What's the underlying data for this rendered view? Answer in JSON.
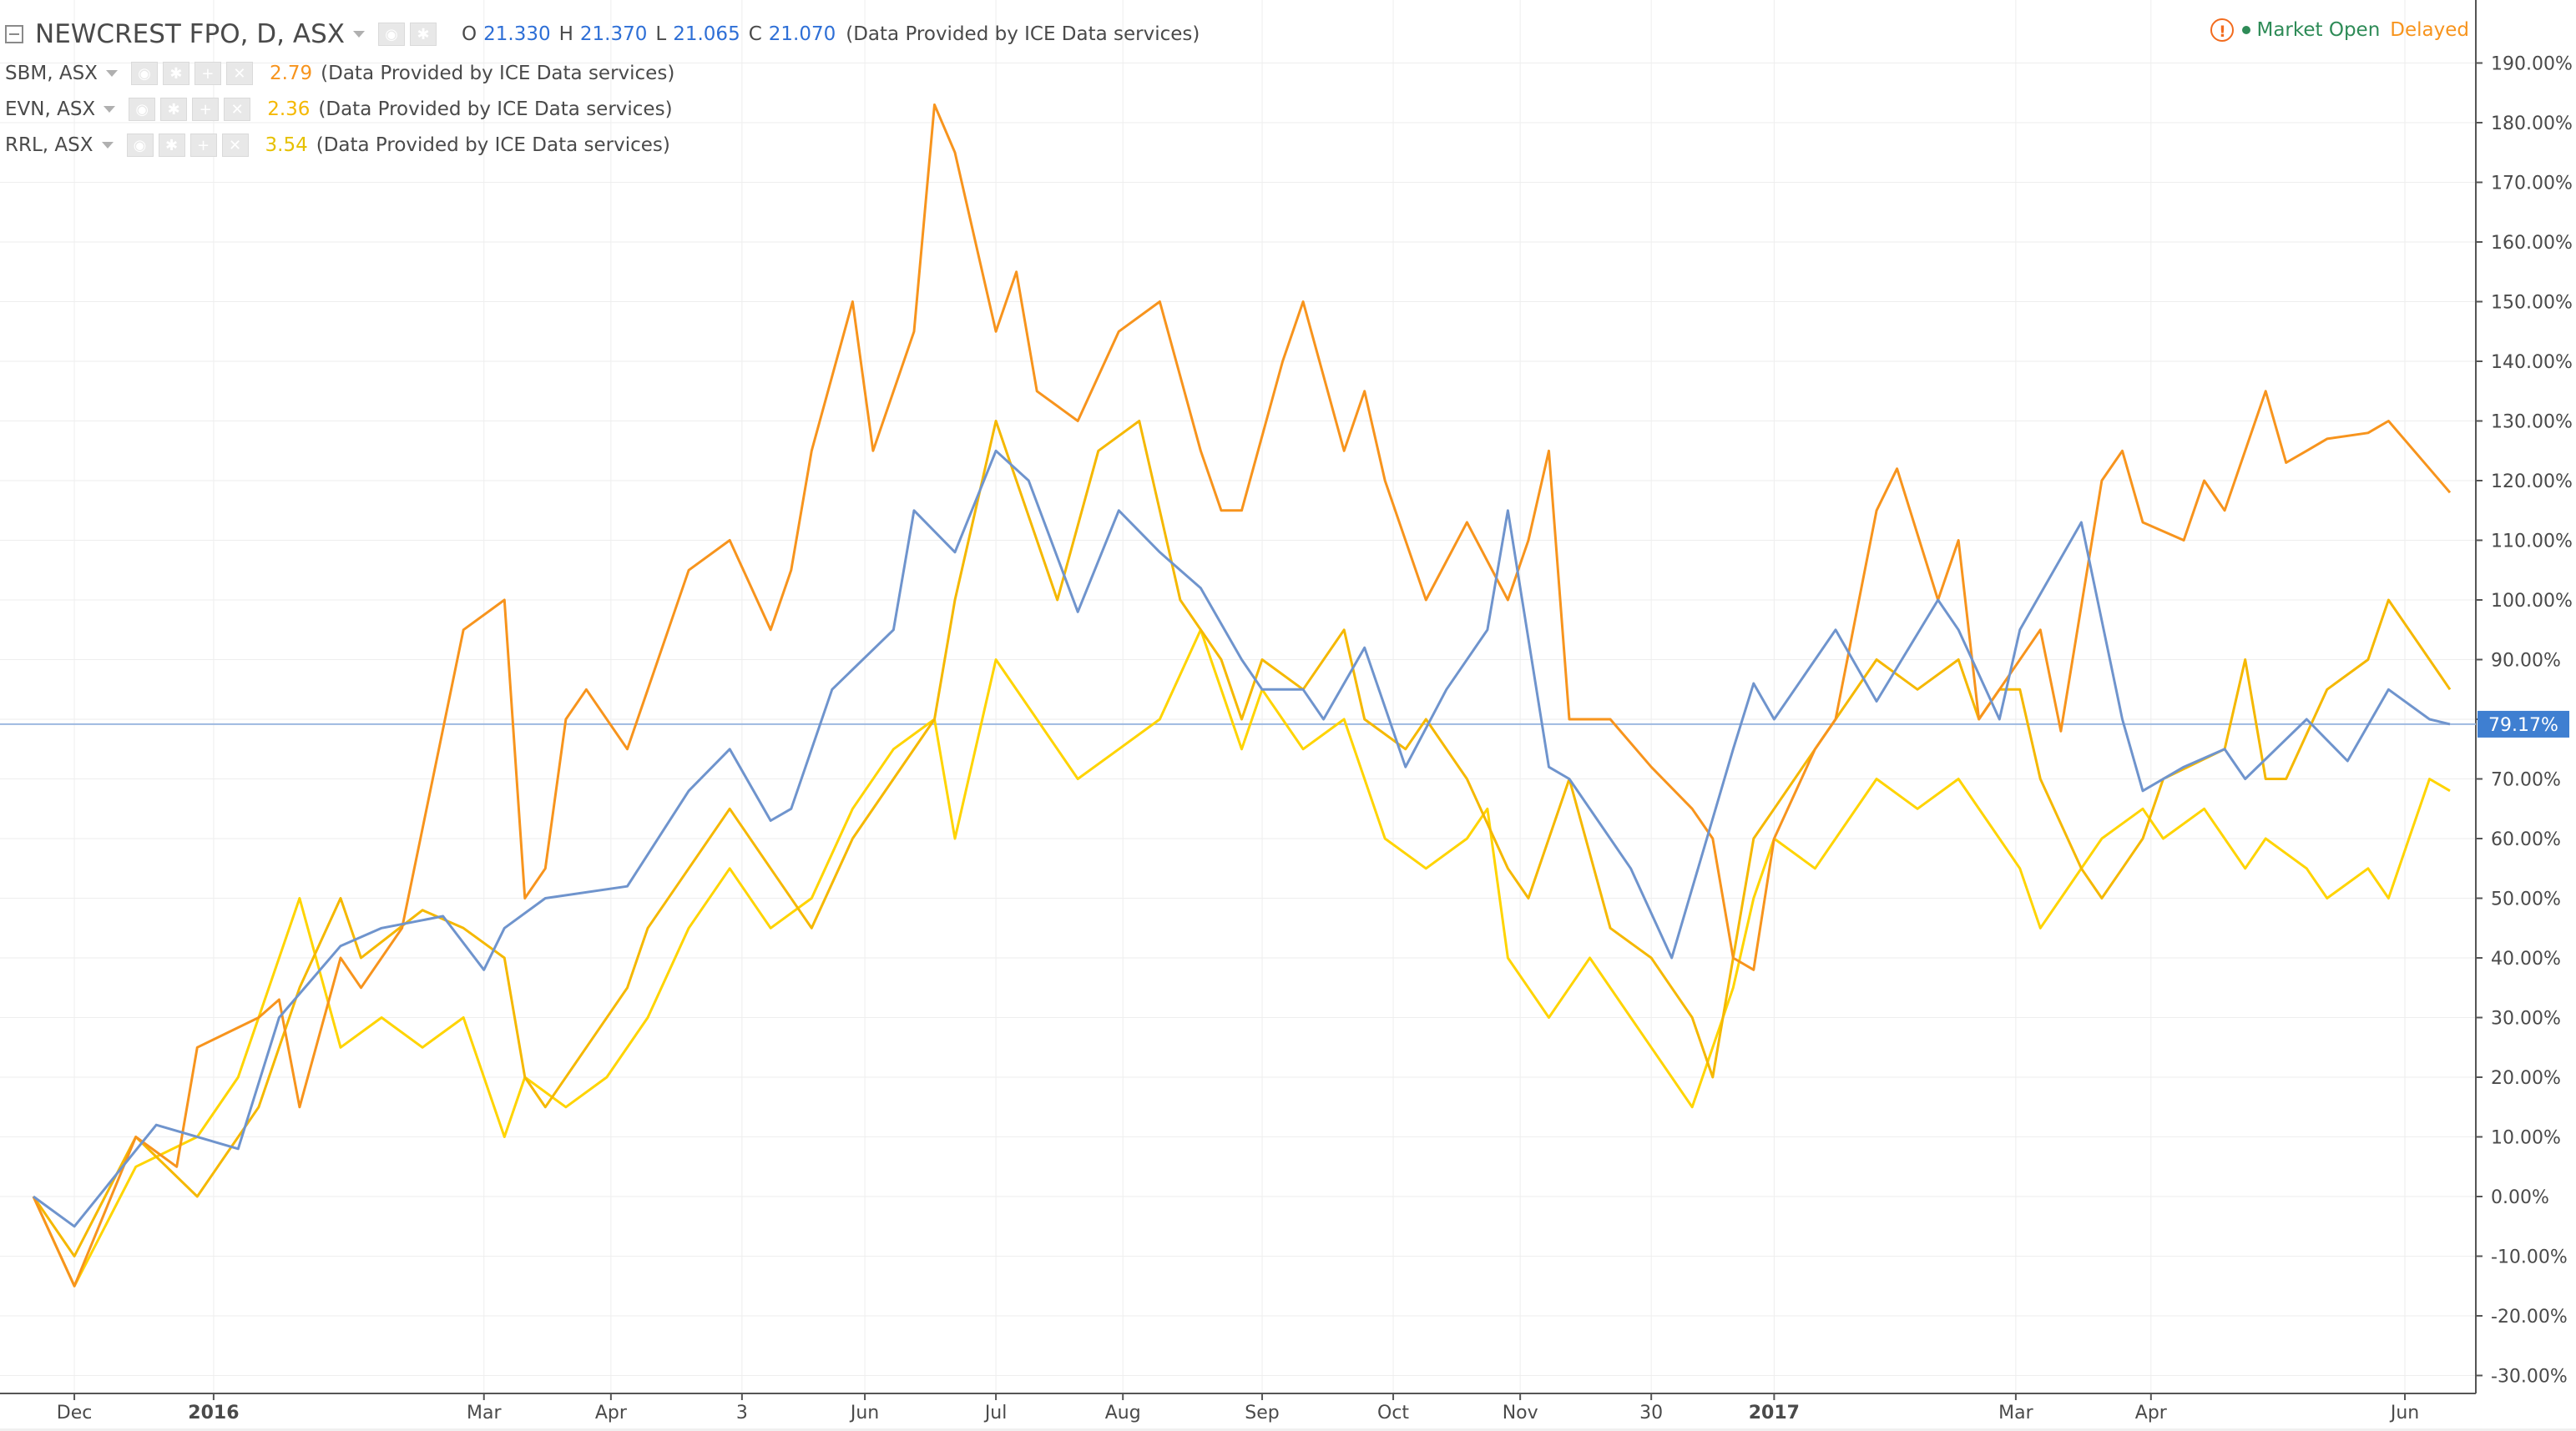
{
  "header": {
    "title": "NEWCREST FPO, D, ASX",
    "ohlc": [
      {
        "key": "O",
        "value": "21.330"
      },
      {
        "key": "H",
        "value": "21.370"
      },
      {
        "key": "L",
        "value": "21.065"
      },
      {
        "key": "C",
        "value": "21.070"
      }
    ],
    "provider": "(Data Provided by ICE Data services)"
  },
  "status": {
    "warning_icon": "!",
    "market_open": "Market Open",
    "delayed": "Delayed",
    "open_color": "#2e8b57",
    "delayed_color": "#f7941d"
  },
  "compare": [
    {
      "symbol": "SBM, ASX",
      "value": "2.79",
      "color": "#f7941d",
      "provider": "(Data Provided by ICE Data services)"
    },
    {
      "symbol": "EVN, ASX",
      "value": "2.36",
      "color": "#f5b800",
      "provider": "(Data Provided by ICE Data services)"
    },
    {
      "symbol": "RRL, ASX",
      "value": "3.54",
      "color": "#ffd400",
      "provider": "(Data Provided by ICE Data services)"
    }
  ],
  "icons": {
    "eye": "eye-icon",
    "settings": "gear-icon",
    "add": "plus-icon",
    "remove": "close-icon",
    "collapse": "collapse-icon",
    "dropdown": "caret-down-icon"
  },
  "chart_data": {
    "type": "line",
    "title": "NEWCREST FPO, D, ASX",
    "x_ticks": [
      "Dec",
      "2016",
      "Mar",
      "Apr",
      "3",
      "Jun",
      "Jul",
      "Aug",
      "Sep",
      "Oct",
      "Nov",
      "30",
      "2017",
      "Mar",
      "Apr",
      "Jun"
    ],
    "x_tick_days": [
      0,
      34,
      100,
      131,
      163,
      193,
      225,
      256,
      290,
      322,
      353,
      385,
      415,
      474,
      507,
      569
    ],
    "ylim": [
      -35,
      197
    ],
    "y_ticks": [
      -30,
      -20,
      -10,
      0,
      10,
      20,
      30,
      40,
      50,
      60,
      70,
      80,
      90,
      100,
      110,
      120,
      130,
      140,
      150,
      160,
      170,
      180,
      190
    ],
    "y_unit": "%",
    "current_value": 79.17,
    "current_label": "79.17%",
    "grid": true,
    "series": [
      {
        "name": "NEWCREST FPO, D, ASX",
        "color": "#6f94cd",
        "x": [
          -10,
          0,
          20,
          40,
          50,
          65,
          75,
          90,
          100,
          105,
          115,
          135,
          150,
          160,
          170,
          175,
          185,
          200,
          205,
          215,
          225,
          233,
          245,
          255,
          265,
          275,
          285,
          290,
          300,
          305,
          315,
          325,
          335,
          345,
          350,
          360,
          365,
          380,
          390,
          405,
          410,
          415,
          430,
          440,
          455,
          460,
          470,
          475,
          490,
          500,
          505,
          515,
          525,
          530,
          545,
          555,
          565,
          575,
          580
        ],
        "y": [
          0,
          -5,
          12,
          8,
          30,
          42,
          45,
          47,
          38,
          45,
          50,
          52,
          68,
          75,
          63,
          65,
          85,
          95,
          115,
          108,
          125,
          120,
          98,
          115,
          108,
          102,
          90,
          85,
          85,
          80,
          92,
          72,
          85,
          95,
          115,
          72,
          70,
          55,
          40,
          75,
          86,
          80,
          95,
          83,
          100,
          95,
          80,
          95,
          113,
          80,
          68,
          72,
          75,
          70,
          80,
          73,
          85,
          80,
          79.17
        ]
      },
      {
        "name": "SBM, ASX",
        "color": "#f7941d",
        "x": [
          -10,
          0,
          15,
          25,
          30,
          45,
          50,
          55,
          65,
          70,
          80,
          95,
          105,
          110,
          115,
          120,
          125,
          135,
          145,
          150,
          160,
          170,
          175,
          180,
          190,
          195,
          205,
          210,
          215,
          225,
          230,
          235,
          245,
          255,
          265,
          275,
          280,
          285,
          295,
          300,
          310,
          315,
          320,
          330,
          340,
          350,
          355,
          360,
          365,
          375,
          385,
          395,
          400,
          405,
          410,
          415,
          425,
          430,
          440,
          445,
          455,
          460,
          465,
          470,
          480,
          485,
          495,
          500,
          505,
          515,
          520,
          525,
          535,
          540,
          545,
          550,
          560,
          565,
          575,
          580
        ],
        "y": [
          0,
          -15,
          10,
          5,
          25,
          30,
          33,
          15,
          40,
          35,
          45,
          95,
          100,
          50,
          55,
          80,
          85,
          75,
          95,
          105,
          110,
          95,
          105,
          125,
          150,
          125,
          145,
          183,
          175,
          145,
          155,
          135,
          130,
          145,
          150,
          125,
          115,
          115,
          140,
          150,
          125,
          135,
          120,
          100,
          113,
          100,
          110,
          125,
          80,
          80,
          72,
          65,
          60,
          40,
          38,
          60,
          75,
          80,
          115,
          122,
          100,
          110,
          80,
          85,
          95,
          78,
          120,
          125,
          113,
          110,
          120,
          115,
          135,
          123,
          125,
          127,
          128,
          130,
          122,
          118
        ]
      },
      {
        "name": "EVN, ASX",
        "color": "#f5b800",
        "x": [
          -10,
          0,
          15,
          30,
          45,
          55,
          65,
          70,
          85,
          95,
          105,
          110,
          115,
          125,
          135,
          140,
          150,
          160,
          170,
          180,
          190,
          200,
          210,
          215,
          225,
          235,
          240,
          250,
          260,
          265,
          270,
          280,
          285,
          290,
          300,
          310,
          315,
          325,
          330,
          340,
          350,
          355,
          360,
          365,
          375,
          385,
          390,
          395,
          400,
          405,
          410,
          415,
          425,
          430,
          440,
          450,
          460,
          465,
          470,
          475,
          480,
          490,
          495,
          500,
          505,
          510,
          525,
          530,
          535,
          540,
          550,
          560,
          565,
          575,
          580
        ],
        "y": [
          0,
          -10,
          10,
          0,
          15,
          35,
          50,
          40,
          48,
          45,
          40,
          20,
          15,
          25,
          35,
          45,
          55,
          65,
          55,
          45,
          60,
          70,
          80,
          100,
          130,
          110,
          100,
          125,
          130,
          115,
          100,
          90,
          80,
          90,
          85,
          95,
          80,
          75,
          80,
          70,
          55,
          50,
          60,
          70,
          45,
          40,
          35,
          30,
          20,
          40,
          60,
          65,
          75,
          80,
          90,
          85,
          90,
          80,
          85,
          85,
          70,
          55,
          50,
          55,
          60,
          70,
          75,
          90,
          70,
          70,
          85,
          90,
          100,
          90,
          85
        ]
      },
      {
        "name": "RRL, ASX",
        "color": "#ffd400",
        "x": [
          -10,
          0,
          15,
          30,
          40,
          50,
          55,
          65,
          75,
          85,
          95,
          105,
          110,
          120,
          130,
          140,
          150,
          160,
          170,
          180,
          190,
          200,
          210,
          215,
          225,
          235,
          245,
          255,
          265,
          275,
          280,
          285,
          290,
          300,
          310,
          320,
          330,
          340,
          345,
          350,
          355,
          360,
          365,
          370,
          380,
          385,
          390,
          395,
          400,
          405,
          410,
          415,
          425,
          430,
          440,
          450,
          460,
          470,
          475,
          480,
          485,
          495,
          505,
          510,
          520,
          530,
          535,
          545,
          550,
          560,
          565,
          570,
          575,
          580
        ],
        "y": [
          0,
          -15,
          5,
          10,
          20,
          40,
          50,
          25,
          30,
          25,
          30,
          10,
          20,
          15,
          20,
          30,
          45,
          55,
          45,
          50,
          65,
          75,
          80,
          60,
          90,
          80,
          70,
          75,
          80,
          95,
          85,
          75,
          85,
          75,
          80,
          60,
          55,
          60,
          65,
          40,
          35,
          30,
          35,
          40,
          30,
          25,
          20,
          15,
          25,
          35,
          50,
          60,
          55,
          60,
          70,
          65,
          70,
          60,
          55,
          45,
          50,
          60,
          65,
          60,
          65,
          55,
          60,
          55,
          50,
          55,
          50,
          60,
          70,
          68
        ]
      }
    ]
  }
}
